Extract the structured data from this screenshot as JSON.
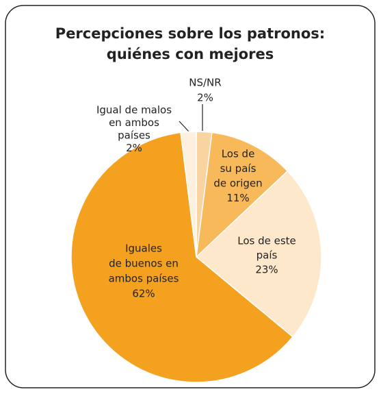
{
  "chart_data": {
    "type": "pie",
    "title": [
      "Percepciones sobre los patronos:",
      "quiénes con mejores"
    ],
    "categories": [
      [
        "NS/NR"
      ],
      [
        "Los de",
        "su país",
        "de origen"
      ],
      [
        "Los de este",
        "país"
      ],
      [
        "Iguales",
        "de buenos en",
        "ambos países"
      ],
      [
        "Igual de malos",
        "en ambos",
        "países"
      ]
    ],
    "values": [
      2,
      11,
      23,
      62,
      2
    ],
    "value_labels": [
      "2%",
      "11%",
      "23%",
      "62%",
      "2%"
    ],
    "colors": [
      "#f9d4a0",
      "#f7b95a",
      "#fde8cb",
      "#f3a11f",
      "#fdf0de"
    ]
  }
}
